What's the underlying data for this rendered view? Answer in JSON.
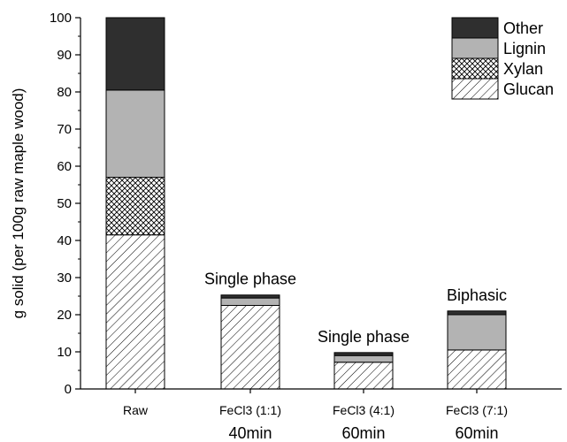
{
  "chart_data": {
    "type": "bar",
    "stacked": true,
    "ylabel": "g solid (per 100g raw maple wood)",
    "ylim": [
      0,
      100
    ],
    "yticks": [
      0,
      10,
      20,
      30,
      40,
      50,
      60,
      70,
      80,
      90,
      100
    ],
    "categories": [
      "Raw",
      "FeCl3 (1:1)",
      "FeCl3 (4:1)",
      "FeCl3 (7:1)"
    ],
    "category_sublabels": [
      "",
      "40min",
      "60min",
      "60min"
    ],
    "bar_annotations": [
      "",
      "Single phase",
      "Single phase",
      "Biphasic"
    ],
    "series": [
      {
        "name": "Glucan",
        "pattern": "diagonal-hatch",
        "color": "#ffffff",
        "values": [
          41.5,
          22.5,
          7.2,
          10.5
        ]
      },
      {
        "name": "Xylan",
        "pattern": "crosshatch",
        "color": "#ffffff",
        "values": [
          15.5,
          0.0,
          0.0,
          0.0
        ]
      },
      {
        "name": "Lignin",
        "pattern": "solid",
        "color": "#b3b3b3",
        "values": [
          23.5,
          2.0,
          1.8,
          9.5
        ]
      },
      {
        "name": "Other",
        "pattern": "solid",
        "color": "#2f2f2f",
        "values": [
          19.5,
          0.8,
          0.8,
          1.0
        ]
      }
    ],
    "legend": {
      "position": "top-right",
      "order": [
        "Other",
        "Lignin",
        "Xylan",
        "Glucan"
      ]
    },
    "grid": false
  }
}
